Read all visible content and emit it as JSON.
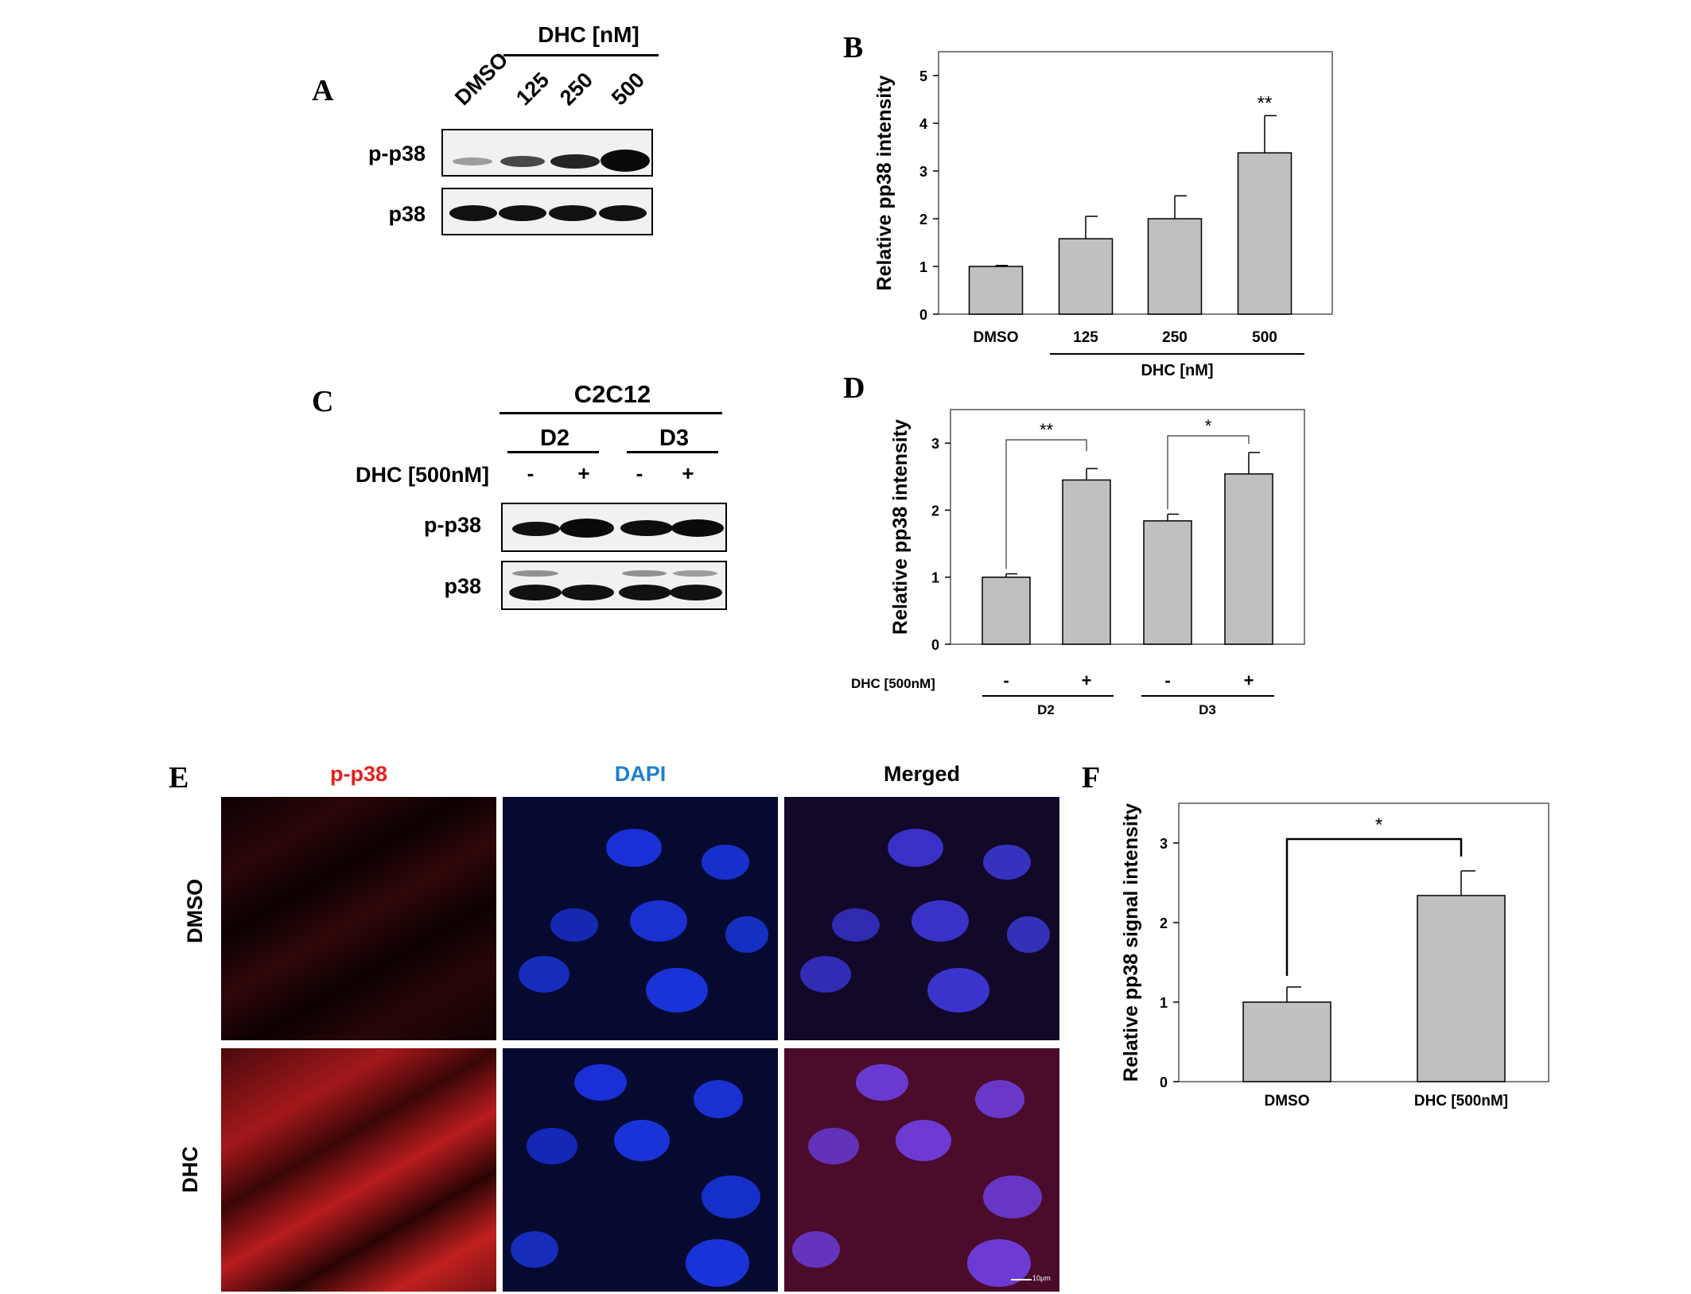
{
  "panel_letters": {
    "A": "A",
    "B": "B",
    "C": "C",
    "D": "D",
    "E": "E",
    "F": "F"
  },
  "panel_a": {
    "treatment_header": "DHC [nM]",
    "lanes": [
      "DMSO",
      "125",
      "250",
      "500"
    ],
    "rows": [
      "p-p38",
      "p38"
    ]
  },
  "panel_c": {
    "cell_line": "C2C12",
    "days": [
      "D2",
      "D3"
    ],
    "treatment_label": "DHC [500nM]",
    "signs": [
      "-",
      "+",
      "-",
      "+"
    ],
    "rows": [
      "p-p38",
      "p38"
    ]
  },
  "panel_e": {
    "columns": [
      "p-p38",
      "DAPI",
      "Merged"
    ],
    "column_colors": [
      "#e8201c",
      "#1f7fd1",
      "#000000"
    ],
    "rows": [
      "DMSO",
      "DHC"
    ],
    "scale_bar": "10μm"
  },
  "chart_data": [
    {
      "panel": "B",
      "type": "bar",
      "categories": [
        "DMSO",
        "125",
        "250",
        "500"
      ],
      "values": [
        1.0,
        1.58,
        2.0,
        3.38
      ],
      "errors": [
        0.02,
        0.47,
        0.48,
        0.78
      ],
      "ylabel": "Relative pp38 intensity",
      "ylim": [
        0,
        5.5
      ],
      "yticks": [
        "0",
        "1",
        "2",
        "3",
        "4",
        "5"
      ],
      "group_label": "DHC [nM]",
      "significance": [
        {
          "category": "500",
          "mark": "**"
        }
      ],
      "bar_color": "#c0c0c0"
    },
    {
      "panel": "D",
      "type": "bar",
      "categories": [
        "-",
        "+",
        "-",
        "+"
      ],
      "values": [
        1.0,
        2.45,
        1.84,
        2.54
      ],
      "errors": [
        0.05,
        0.17,
        0.1,
        0.32
      ],
      "ylabel": "Relative pp38 intensity",
      "ylim": [
        0,
        3.5
      ],
      "yticks": [
        "0",
        "1",
        "2",
        "3"
      ],
      "treatment_label": "DHC [500nM]",
      "groups": [
        "D2",
        "D3"
      ],
      "significance": [
        {
          "pair": [
            0,
            1
          ],
          "mark": "**"
        },
        {
          "pair": [
            2,
            3
          ],
          "mark": "*"
        }
      ],
      "bar_color": "#c0c0c0"
    },
    {
      "panel": "F",
      "type": "bar",
      "categories": [
        "DMSO",
        "DHC [500nM]"
      ],
      "values": [
        1.0,
        2.34
      ],
      "errors": [
        0.19,
        0.31
      ],
      "ylabel": "Relative pp38 signal intensity",
      "ylim": [
        0,
        3.5
      ],
      "yticks": [
        "0",
        "1",
        "2",
        "3"
      ],
      "significance": [
        {
          "pair": [
            0,
            1
          ],
          "mark": "*"
        }
      ],
      "bar_color": "#c0c0c0"
    }
  ]
}
